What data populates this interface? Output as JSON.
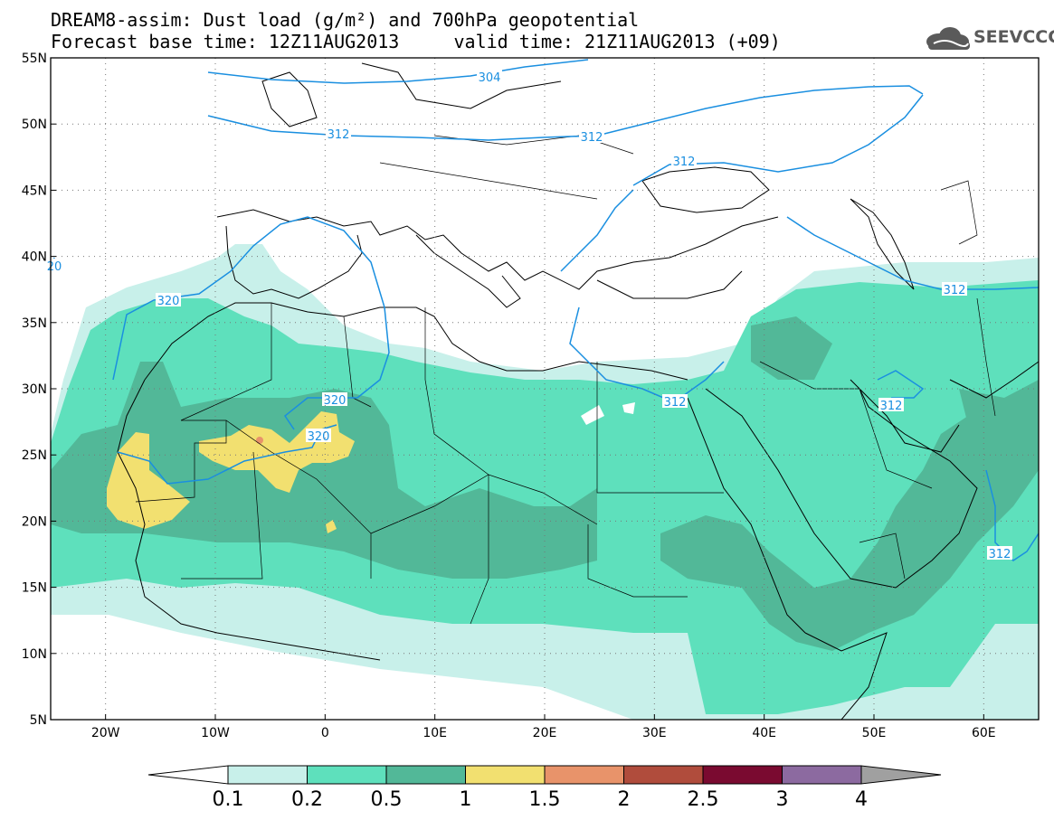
{
  "header": {
    "title_line1": "DREAM8-assim: Dust load (g/m²) and 700hPa geopotential",
    "title_line2": "Forecast base time: 12Z11AUG2013     valid time: 21Z11AUG2013 (+09)"
  },
  "logo": {
    "text": "SEEVCCC",
    "icon": "cloud-icon"
  },
  "chart_data": {
    "type": "heatmap",
    "lon_range": [
      -25,
      65
    ],
    "lat_range": [
      5,
      55
    ],
    "grid": true,
    "x_ticks": [
      "20W",
      "10W",
      "0",
      "10E",
      "20E",
      "30E",
      "40E",
      "50E",
      "60E"
    ],
    "y_ticks": [
      "5N",
      "10N",
      "15N",
      "20N",
      "25N",
      "30N",
      "35N",
      "40N",
      "45N",
      "50N",
      "55N"
    ],
    "colorbar": {
      "levels": [
        "0.1",
        "0.2",
        "0.5",
        "1",
        "1.5",
        "2",
        "2.5",
        "3",
        "4"
      ],
      "colors": [
        "#c8f0ea",
        "#5ee0bc",
        "#52b898",
        "#f2e070",
        "#e8936a",
        "#b04c3c",
        "#7a0a30",
        "#8c6aa0",
        "#a0a0a0"
      ],
      "below_color": "#ffffff",
      "above_color": "#a0a0a0"
    },
    "contour_labels": [
      "304",
      "312",
      "312",
      "312",
      "320",
      "320",
      "320",
      "312",
      "312",
      "312",
      "312",
      "20"
    ]
  }
}
